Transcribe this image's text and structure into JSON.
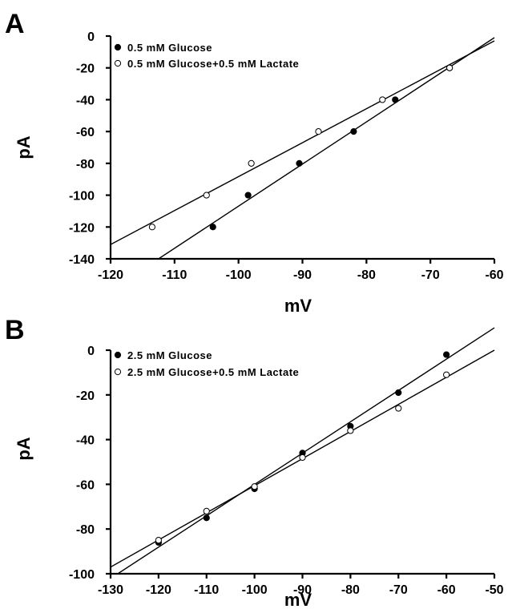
{
  "chart_data": [
    {
      "type": "scatter",
      "panel_label": "A",
      "xlabel": "mV",
      "ylabel": "pA",
      "xlim": [
        -120,
        -60
      ],
      "ylim": [
        -140,
        0
      ],
      "xticks": [
        -120,
        -110,
        -100,
        -90,
        -80,
        -70,
        -60
      ],
      "yticks": [
        0,
        -20,
        -40,
        -60,
        -80,
        -100,
        -120,
        -140
      ],
      "legend_position": "top-left",
      "grid": false,
      "series": [
        {
          "name": "0.5 mM Glucose",
          "marker": "filled",
          "points": [
            [
              -104,
              -120
            ],
            [
              -98.5,
              -100
            ],
            [
              -90.5,
              -80
            ],
            [
              -82,
              -60
            ],
            [
              -75.5,
              -40
            ],
            [
              -67,
              -20
            ]
          ],
          "fit": [
            [
              -112.5,
              -140
            ],
            [
              -60,
              -1
            ]
          ]
        },
        {
          "name": "0.5 mM Glucose+0.5 mM Lactate",
          "marker": "open",
          "points": [
            [
              -113.5,
              -120
            ],
            [
              -105,
              -100
            ],
            [
              -98,
              -80
            ],
            [
              -87.5,
              -60
            ],
            [
              -77.5,
              -40
            ],
            [
              -67,
              -20
            ]
          ],
          "fit": [
            [
              -120,
              -131
            ],
            [
              -60,
              -3
            ]
          ]
        }
      ]
    },
    {
      "type": "scatter",
      "panel_label": "B",
      "xlabel": "mV",
      "ylabel": "pA",
      "xlim": [
        -130,
        -50
      ],
      "ylim": [
        -100,
        0
      ],
      "xticks": [
        -130,
        -120,
        -110,
        -100,
        -90,
        -80,
        -70,
        -60,
        -50
      ],
      "yticks": [
        0,
        -20,
        -40,
        -60,
        -80,
        -100
      ],
      "legend_position": "top-left",
      "grid": false,
      "series": [
        {
          "name": "2.5 mM Glucose",
          "marker": "filled",
          "points": [
            [
              -120,
              -86
            ],
            [
              -110,
              -75
            ],
            [
              -100,
              -62
            ],
            [
              -90,
              -46
            ],
            [
              -80,
              -34
            ],
            [
              -70,
              -19
            ],
            [
              -60,
              -2
            ]
          ],
          "fit": [
            [
              -128.5,
              -100
            ],
            [
              -50,
              10
            ]
          ]
        },
        {
          "name": "2.5 mM Glucose+0.5 mM Lactate",
          "marker": "open",
          "points": [
            [
              -120,
              -85
            ],
            [
              -110,
              -72
            ],
            [
              -100,
              -61
            ],
            [
              -90,
              -48
            ],
            [
              -80,
              -36
            ],
            [
              -70,
              -26
            ],
            [
              -60,
              -11
            ]
          ],
          "fit": [
            [
              -130,
              -97
            ],
            [
              -50,
              0
            ]
          ]
        }
      ]
    }
  ]
}
